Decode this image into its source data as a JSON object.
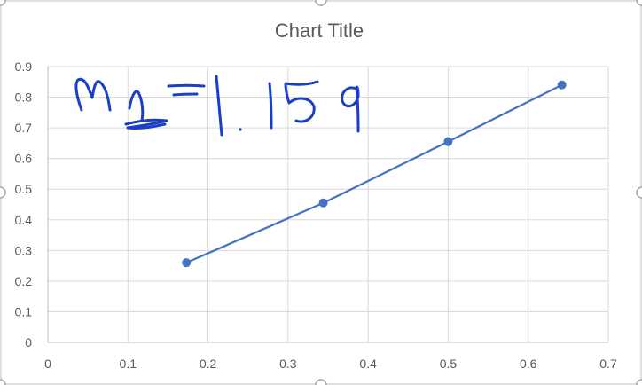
{
  "chart_data": {
    "type": "scatter",
    "title": "Chart Title",
    "xlabel": "",
    "ylabel": "",
    "xlim": [
      0,
      0.7
    ],
    "ylim": [
      0,
      0.9
    ],
    "x_ticks": [
      "0",
      "0.1",
      "0.2",
      "0.3",
      "0.4",
      "0.5",
      "0.6",
      "0.7"
    ],
    "y_ticks": [
      "0",
      "0.1",
      "0.2",
      "0.3",
      "0.4",
      "0.5",
      "0.6",
      "0.7",
      "0.8",
      "0.9"
    ],
    "grid": true,
    "series": [
      {
        "x": [
          0.173,
          0.344,
          0.5,
          0.642
        ],
        "y": [
          0.26,
          0.455,
          0.655,
          0.84
        ],
        "line": true,
        "markers": true,
        "color": "#4472c4"
      }
    ],
    "annotations": [
      {
        "text": "m=1.159",
        "style": "handwritten",
        "color": "#1a3fc7"
      }
    ]
  },
  "colors": {
    "gridline": "#d9d9d9",
    "axis": "#bfbfbf",
    "frame": "#bfbfbf",
    "handle": "#a6a6a6",
    "text": "#595959"
  }
}
